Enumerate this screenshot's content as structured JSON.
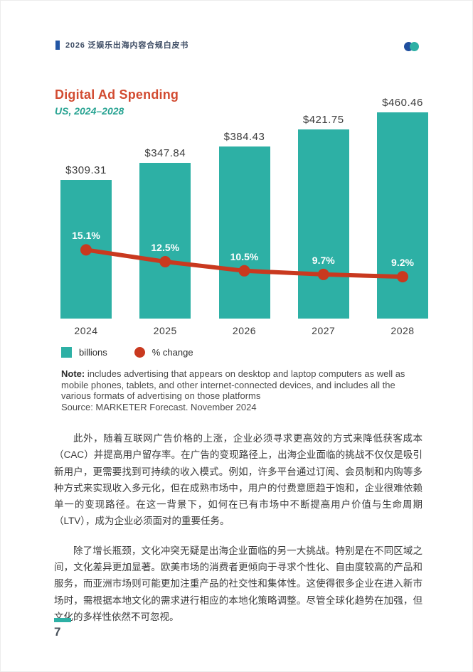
{
  "header": {
    "doc_title": "2026 泛娱乐出海内容合规白皮书"
  },
  "theme": {
    "bar_teal": "#2db0a5",
    "line_red": "#c9391f",
    "title_red": "#d24b31",
    "subtitle_teal": "#28a392",
    "header_blue": "#2356a5",
    "logo_blue": "#1f4e9e"
  },
  "chart": {
    "title": "Digital Ad Spending",
    "subtitle": "US, 2024–2028",
    "legend": [
      {
        "label": "billions",
        "swatch": "square",
        "color": "#2db0a5"
      },
      {
        "label": "% change",
        "swatch": "circle",
        "color": "#c9391f"
      }
    ],
    "note_label": "Note:",
    "note_text": " includes advertising that appears on desktop and laptop computers as well as mobile phones, tablets, and other internet-connected devices, and includes all the various formats of advertising on those platforms",
    "source_text": "Source: MARKETER Forecast. November 2024"
  },
  "chart_data": {
    "type": "combo",
    "categories": [
      "2024",
      "2025",
      "2026",
      "2027",
      "2028"
    ],
    "series": [
      {
        "name": "billions",
        "type": "bar",
        "values": [
          309.31,
          347.84,
          384.43,
          421.75,
          460.46
        ],
        "labels": [
          "$309.31",
          "$347.84",
          "$384.43",
          "$421.75",
          "$460.46"
        ],
        "color": "#2db0a5"
      },
      {
        "name": "% change",
        "type": "line",
        "values": [
          15.1,
          12.5,
          10.5,
          9.7,
          9.2
        ],
        "labels": [
          "15.1%",
          "12.5%",
          "10.5%",
          "9.7%",
          "9.2%"
        ],
        "color": "#c9391f"
      }
    ],
    "title": "Digital Ad Spending",
    "subtitle": "US, 2024–2028",
    "xlabel": "",
    "ylabel": "",
    "ylim": [
      0,
      500
    ],
    "grid": false,
    "legend_position": "bottom-left",
    "value_prefix": "$"
  },
  "body": {
    "paragraphs": [
      "此外，随着互联网广告价格的上涨，企业必须寻求更高效的方式来降低获客成本（CAC）并提高用户留存率。在广告的变现路径上，出海企业面临的挑战不仅仅是吸引新用户，更需要找到可持续的收入模式。例如，许多平台通过订阅、会员制和内购等多种方式来实现收入多元化，但在成熟市场中，用户的付费意愿趋于饱和，企业很难依赖单一的变现路径。在这一背景下，如何在已有市场中不断提高用户价值与生命周期（LTV），成为企业必须面对的重要任务。",
      "除了增长瓶颈，文化冲突无疑是出海企业面临的另一大挑战。特别是在不同区域之间，文化差异更加显著。欧美市场的消费者更倾向于寻求个性化、自由度较高的产品和服务，而亚洲市场则可能更加注重产品的社交性和集体性。这使得很多企业在进入新市场时，需根据本地文化的需求进行相应的本地化策略调整。尽管全球化趋势在加强，但文化的多样性依然不可忽视。"
    ]
  },
  "footer": {
    "page_number": "7"
  }
}
